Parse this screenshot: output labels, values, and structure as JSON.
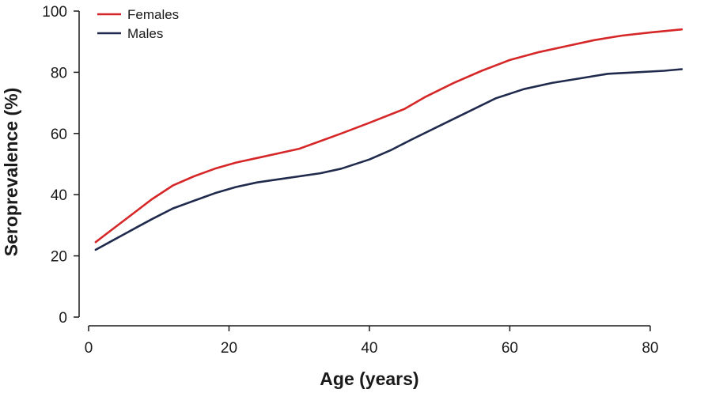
{
  "chart_data": {
    "type": "line",
    "title": "",
    "xlabel": "Age (years)",
    "ylabel": "Seroprevalence (%)",
    "xlim": [
      0,
      87
    ],
    "ylim": [
      0,
      100
    ],
    "xticks": [
      0,
      20,
      40,
      60,
      80
    ],
    "yticks": [
      0,
      20,
      40,
      60,
      80,
      100
    ],
    "grid": false,
    "legend_position": "top-left",
    "series": [
      {
        "name": "Females",
        "color": "#d62728",
        "x": [
          1,
          3,
          5,
          7,
          9,
          12,
          15,
          18,
          21,
          24,
          27,
          30,
          33,
          36,
          40,
          45,
          48,
          52,
          56,
          60,
          64,
          68,
          72,
          76,
          80,
          84.5
        ],
        "y": [
          24.5,
          28,
          31.5,
          35,
          38.5,
          43,
          46,
          48.5,
          50.5,
          52,
          53.5,
          55,
          57.5,
          60,
          63.5,
          68,
          72,
          76.5,
          80.5,
          84,
          86.5,
          88.5,
          90.5,
          92,
          93,
          94
        ]
      },
      {
        "name": "Males",
        "color": "#1f2a4d",
        "x": [
          1,
          3,
          5,
          7,
          9,
          12,
          15,
          18,
          21,
          24,
          27,
          30,
          33,
          36,
          40,
          43,
          46,
          50,
          54,
          58,
          62,
          66,
          70,
          74,
          78,
          82,
          84.5
        ],
        "y": [
          22,
          24.5,
          27,
          29.5,
          32,
          35.5,
          38,
          40.5,
          42.5,
          44,
          45,
          46,
          47,
          48.5,
          51.5,
          54.5,
          58,
          62.5,
          67,
          71.5,
          74.5,
          76.5,
          78,
          79.5,
          80,
          80.5,
          81
        ]
      }
    ]
  }
}
